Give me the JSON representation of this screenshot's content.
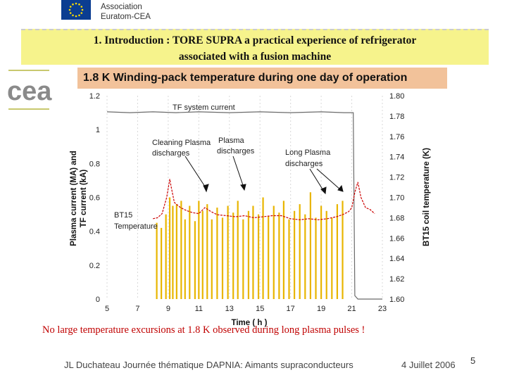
{
  "header": {
    "org_line1": "Association",
    "org_line2": "Euratom-CEA",
    "title_line1": "1. Introduction : TORE SUPRA a practical experience of refrigerator",
    "title_line2": "associated with a fusion machine",
    "logo_text": "cea"
  },
  "chart_data": {
    "type": "line",
    "title": "1.8 K Winding-pack  temperature during one day of operation",
    "xlabel": "Time ( h )",
    "ylabel_left_line1": "Plasma current (MA) and",
    "ylabel_left_line2": "TF current (kA)",
    "ylabel_right": "BT15 coil temperature (K)",
    "xlim": [
      5,
      23
    ],
    "ylim_left": [
      0,
      1.2
    ],
    "ylim_right": [
      1.6,
      1.8
    ],
    "x_ticks": [
      "5",
      "7",
      "9",
      "11",
      "13",
      "15",
      "17",
      "19",
      "21",
      "23"
    ],
    "y_left_ticks": [
      "0",
      "0.2",
      "0.4",
      "0.6",
      "0.8",
      "1",
      "1.2"
    ],
    "y_right_ticks": [
      "1.60",
      "1.62",
      "1.64",
      "1.66",
      "1.68",
      "1.70",
      "1.72",
      "1.74",
      "1.76",
      "1.78",
      "1.80"
    ],
    "series": [
      {
        "name": "TF system current",
        "axis": "left",
        "color": "#6b6b6b",
        "x": [
          5.0,
          6.5,
          8.0,
          9.5,
          11.0,
          13.0,
          15.0,
          17.0,
          19.0,
          20.5,
          21.1,
          21.2,
          21.4,
          23.0
        ],
        "y": [
          1.105,
          1.1,
          1.105,
          1.1,
          1.105,
          1.1,
          1.105,
          1.1,
          1.105,
          1.1,
          1.1,
          0.02,
          0.0,
          0.0
        ]
      },
      {
        "name": "BT15 Temperature",
        "axis": "right",
        "color": "#cc0000",
        "x": [
          8.0,
          8.3,
          8.6,
          8.9,
          9.1,
          9.2,
          9.4,
          9.8,
          10.2,
          10.6,
          11.0,
          11.4,
          11.8,
          12.2,
          12.8,
          13.4,
          14.0,
          14.6,
          15.2,
          15.8,
          16.4,
          17.0,
          17.6,
          18.2,
          18.8,
          19.4,
          20.0,
          20.4,
          20.8,
          21.0,
          21.2,
          21.4,
          21.6,
          21.9,
          22.2,
          22.5
        ],
        "y": [
          1.679,
          1.68,
          1.684,
          1.7,
          1.718,
          1.71,
          1.695,
          1.69,
          1.687,
          1.685,
          1.684,
          1.69,
          1.686,
          1.683,
          1.682,
          1.681,
          1.682,
          1.68,
          1.681,
          1.682,
          1.682,
          1.679,
          1.678,
          1.679,
          1.678,
          1.679,
          1.681,
          1.683,
          1.686,
          1.69,
          1.705,
          1.715,
          1.7,
          1.69,
          1.688,
          1.684
        ]
      },
      {
        "name": "Plasma current pulses",
        "axis": "left",
        "color": "#e8b500",
        "type": "spikes",
        "x": [
          8.25,
          8.55,
          8.85,
          9.1,
          9.3,
          9.55,
          9.85,
          10.1,
          10.4,
          10.75,
          11.0,
          11.25,
          11.55,
          11.85,
          12.2,
          12.55,
          12.9,
          13.25,
          13.55,
          13.9,
          14.25,
          14.55,
          14.9,
          15.2,
          15.55,
          15.9,
          16.25,
          16.55,
          16.9,
          17.25,
          17.6,
          17.95,
          18.3,
          18.65,
          19.0,
          19.35,
          19.7,
          20.05,
          20.4
        ],
        "y": [
          0.45,
          0.42,
          0.5,
          0.6,
          0.55,
          0.56,
          0.58,
          0.47,
          0.55,
          0.46,
          0.58,
          0.52,
          0.56,
          0.47,
          0.54,
          0.48,
          0.55,
          0.51,
          0.58,
          0.47,
          0.52,
          0.55,
          0.5,
          0.6,
          0.49,
          0.55,
          0.51,
          0.58,
          0.47,
          0.52,
          0.56,
          0.5,
          0.63,
          0.48,
          0.55,
          0.52,
          0.48,
          0.56,
          0.58
        ]
      }
    ],
    "annotations": [
      {
        "id": "tf",
        "text": "TF system current"
      },
      {
        "id": "cleaning_1",
        "text": "Cleaning Plasma"
      },
      {
        "id": "cleaning_2",
        "text": "discharges"
      },
      {
        "id": "plasma_1",
        "text": "Plasma"
      },
      {
        "id": "plasma_2",
        "text": "discharges"
      },
      {
        "id": "long_1",
        "text": "Long Plasma"
      },
      {
        "id": "long_2",
        "text": "discharges"
      },
      {
        "id": "bt15_1",
        "text": "BT15"
      },
      {
        "id": "bt15_2",
        "text": "Temperature"
      }
    ]
  },
  "caption": "No large temperature excursions at 1.8 K  observed during long plasma pulses !",
  "footer": {
    "author": "JL Duchateau  Journée thématique DAPNIA: Aimants supraconducteurs",
    "date": "4  Juillet  2006",
    "page": "5"
  },
  "colors": {
    "title_bg": "#f6f38c",
    "chart_title_bg": "#f2c29a",
    "caption": "#c00000",
    "eu_blue": "#0b3d91",
    "eu_star": "#ffdd00"
  }
}
